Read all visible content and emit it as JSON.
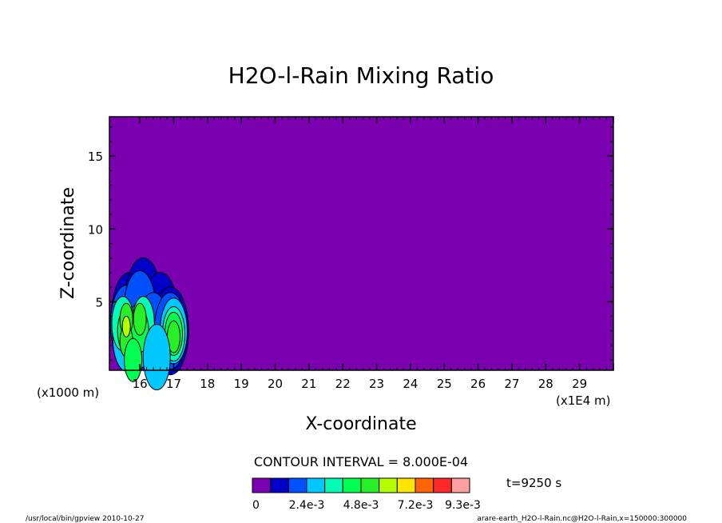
{
  "chart_data": {
    "type": "heatmap",
    "title": "H2O-l-Rain Mixing Ratio",
    "xlabel": "X-coordinate",
    "ylabel": "Z-coordinate",
    "x_unit_left": "(x1000 m)",
    "x_unit_right": "(x1E4 m)",
    "xlim": [
      15.1,
      30.0
    ],
    "ylim": [
      0.3,
      17.7
    ],
    "x_ticks": [
      16,
      17,
      18,
      19,
      20,
      21,
      22,
      23,
      24,
      25,
      26,
      27,
      28,
      29
    ],
    "y_ticks": [
      5,
      10,
      15
    ],
    "background_level_color": "#7a00b0",
    "contour_interval_text": "CONTOUR INTERVAL = 8.000E-04",
    "time_text": "t=9250 s",
    "colorbar": {
      "colors": [
        "#7a00b0",
        "#0000c8",
        "#0050ff",
        "#00c8ff",
        "#00ffb4",
        "#00ff50",
        "#28f028",
        "#b4ff00",
        "#ffe600",
        "#ff6400",
        "#ff2828",
        "#ffa0a0"
      ],
      "labels": [
        "0",
        "2.4e-3",
        "4.8e-3",
        "7.2e-3",
        "9.3e-3"
      ]
    },
    "cells": [
      {
        "x": 15.7,
        "z": 4.0,
        "level": 1
      },
      {
        "x": 16.1,
        "z": 5.0,
        "level": 1
      },
      {
        "x": 16.6,
        "z": 4.0,
        "level": 1
      },
      {
        "x": 16.9,
        "z": 3.0,
        "level": 1
      },
      {
        "x": 15.6,
        "z": 3.5,
        "level": 2
      },
      {
        "x": 16.0,
        "z": 4.5,
        "level": 2
      },
      {
        "x": 16.4,
        "z": 3.0,
        "level": 2
      },
      {
        "x": 16.9,
        "z": 3.0,
        "level": 2
      },
      {
        "x": 15.6,
        "z": 2.5,
        "level": 3
      },
      {
        "x": 16.0,
        "z": 2.7,
        "level": 3
      },
      {
        "x": 17.0,
        "z": 3.0,
        "level": 3
      },
      {
        "x": 15.5,
        "z": 3.5,
        "level": 4
      },
      {
        "x": 16.1,
        "z": 3.5,
        "level": 4
      },
      {
        "x": 17.0,
        "z": 2.8,
        "level": 4
      },
      {
        "x": 15.6,
        "z": 3.0,
        "level": 5
      },
      {
        "x": 16.0,
        "z": 3.0,
        "level": 5
      },
      {
        "x": 17.0,
        "z": 2.8,
        "level": 5
      },
      {
        "x": 15.6,
        "z": 3.8,
        "level": 6
      },
      {
        "x": 15.6,
        "z": 2.3,
        "level": 6
      },
      {
        "x": 16.0,
        "z": 3.8,
        "level": 6
      },
      {
        "x": 17.0,
        "z": 2.6,
        "level": 6
      },
      {
        "x": 15.6,
        "z": 3.3,
        "level": 7
      },
      {
        "x": 15.8,
        "z": 1.0,
        "level": 5
      },
      {
        "x": 16.5,
        "z": 1.2,
        "level": 3
      }
    ]
  },
  "footer": {
    "left": "/usr/local/bin/gpview  2010-10-27",
    "right": "arare-earth_H2O-l-Rain.nc@H2O-l-Rain,x=150000:300000"
  }
}
